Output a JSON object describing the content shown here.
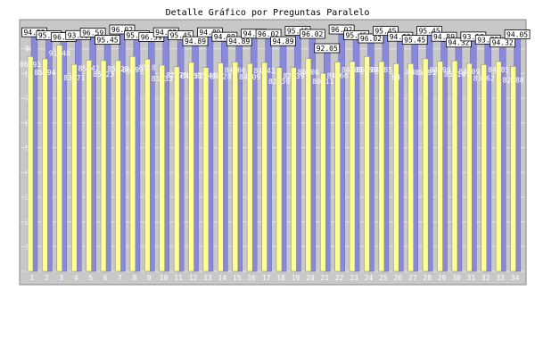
{
  "chart_data": {
    "type": "bar",
    "title": "Detalle Gráfico por Preguntas Paralelo",
    "xlabel": "",
    "ylabel": "",
    "ylim": [
      0,
      100
    ],
    "yticks": [
      10,
      20,
      30,
      40,
      50,
      60,
      70,
      80,
      90
    ],
    "grid": true,
    "legend": "none",
    "categories": [
      "1",
      "2",
      "3",
      "4",
      "5",
      "6",
      "7",
      "8",
      "9",
      "10",
      "11",
      "12",
      "13",
      "14",
      "15",
      "16",
      "17",
      "18",
      "19",
      "20",
      "21",
      "22",
      "23",
      "24",
      "25",
      "26",
      "27",
      "28",
      "29",
      "30",
      "31",
      "32",
      "33",
      "34"
    ],
    "series": [
      {
        "color": "#8888dd",
        "values": [
          94.89,
          95.45,
          96.53,
          93.75,
          96.59,
          95.45,
          96.02,
          95.45,
          96.59,
          94.89,
          95.45,
          94.89,
          94.89,
          94.89,
          94.89,
          94.32,
          96.02,
          94.89,
          95.45,
          96.02,
          92.05,
          96.02,
          95.45,
          96.02,
          95.45,
          94.89,
          95.45,
          95.45,
          94.89,
          94.32,
          93.18,
          93.75,
          94.32,
          94.05
        ],
        "labels": [
          "94.89",
          "95.45",
          "96.53",
          "93.75",
          "96.59",
          "95.45",
          "96.02",
          "95.45",
          "96.59",
          "94.89",
          "95.45",
          "94.89",
          "94.89",
          "94.89",
          "94.89",
          "94.32",
          "96.02",
          "94.89",
          "95.45",
          "96.02",
          "92.05",
          "96.02",
          "95.45",
          "96.02",
          "95.45",
          "94.89",
          "95.45",
          "95.45",
          "94.89",
          "94.32",
          "93.18",
          "93.75",
          "94.32",
          "94.05"
        ]
      },
      {
        "color": "#ffff99",
        "values": [
          86.93,
          85.94,
          91.48,
          83.71,
          85.42,
          85.23,
          85.23,
          86.93,
          85.8,
          83.33,
          82.75,
          84.51,
          82.41,
          84.28,
          84.66,
          84.09,
          84.43,
          82.39,
          82.39,
          86.08,
          80.11,
          84.66,
          84.85,
          86.93,
          84.85,
          84,
          84,
          85.95,
          84.9,
          85.14,
          84.09,
          83.62,
          84.85,
          82.88
        ],
        "labels": [
          "86.93",
          "85.94",
          "91.48",
          "83.71",
          "85.42",
          "85.23",
          "85.23",
          "86.93",
          "85.8",
          "83.33",
          "82.75",
          "84.51",
          "82.41",
          "84.28",
          "84.66",
          "84.09",
          "84.43",
          "82.39",
          "82.39",
          "86.08",
          "80.11",
          "84.66",
          "84.85",
          "86.93",
          "84.85",
          "84",
          "84",
          "85.95",
          "84.90",
          "85.14",
          "84.09",
          "83.62",
          "84.85",
          "82.88"
        ]
      }
    ]
  }
}
